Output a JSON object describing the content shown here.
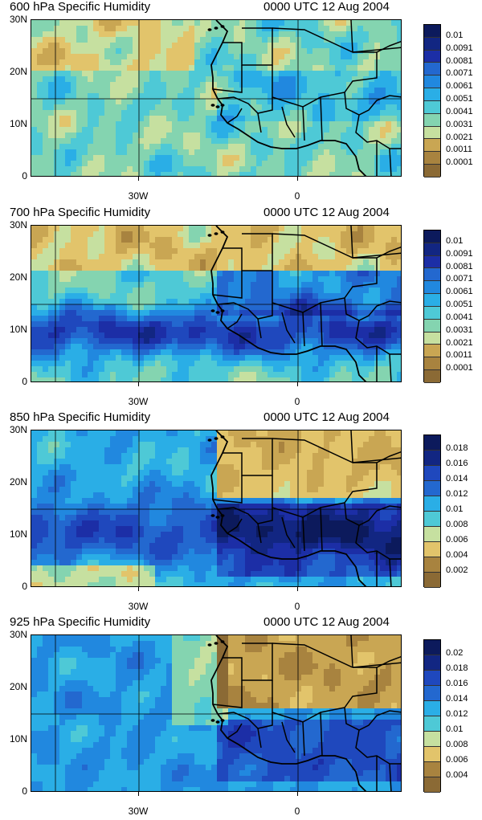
{
  "palette": [
    "#8b6a35",
    "#a8833f",
    "#c9a653",
    "#e2c46b",
    "#c6e0a0",
    "#84d4b0",
    "#4ec9d6",
    "#2aaee6",
    "#2188df",
    "#2368cf",
    "#1f48bd",
    "#1c2ea6",
    "#122682",
    "#0c1a5c"
  ],
  "panels": [
    {
      "title": "600 hPa Specific Humidity",
      "time": "0000 UTC 12 Aug 2004",
      "y_labels": [
        "30N",
        "20N",
        "10N",
        "0"
      ],
      "x_labels": [
        "30W",
        "0"
      ],
      "colorbar_labels": [
        "0.01",
        "0.0091",
        "0.0081",
        "0.0071",
        "0.0061",
        "0.0051",
        "0.0041",
        "0.0031",
        "0.0021",
        "0.0011",
        "0.0001"
      ],
      "moisture_profile": "mid"
    },
    {
      "title": "700 hPa Specific Humidity",
      "time": "0000 UTC 12 Aug 2004",
      "y_labels": [
        "30N",
        "20N",
        "10N",
        "0"
      ],
      "x_labels": [
        "30W",
        "0"
      ],
      "colorbar_labels": [
        "0.01",
        "0.0091",
        "0.0081",
        "0.0071",
        "0.0061",
        "0.0051",
        "0.0041",
        "0.0031",
        "0.0021",
        "0.0011",
        "0.0001"
      ],
      "moisture_profile": "wet"
    },
    {
      "title": "850 hPa Specific Humidity",
      "time": "0000 UTC 12 Aug 2004",
      "y_labels": [
        "30N",
        "20N",
        "10N",
        "0"
      ],
      "x_labels": [
        "30W",
        "0"
      ],
      "colorbar_labels": [
        "0.018",
        "0.016",
        "0.014",
        "0.012",
        "0.01",
        "0.008",
        "0.006",
        "0.004",
        "0.002"
      ],
      "moisture_profile": "low"
    },
    {
      "title": "925 hPa Specific Humidity",
      "time": "0000 UTC 12 Aug 2004",
      "y_labels": [
        "30N",
        "20N",
        "10N",
        "0"
      ],
      "x_labels": [
        "30W",
        "0"
      ],
      "colorbar_labels": [
        "0.02",
        "0.018",
        "0.016",
        "0.014",
        "0.012",
        "0.01",
        "0.008",
        "0.006",
        "0.004"
      ],
      "moisture_profile": "surface"
    }
  ]
}
